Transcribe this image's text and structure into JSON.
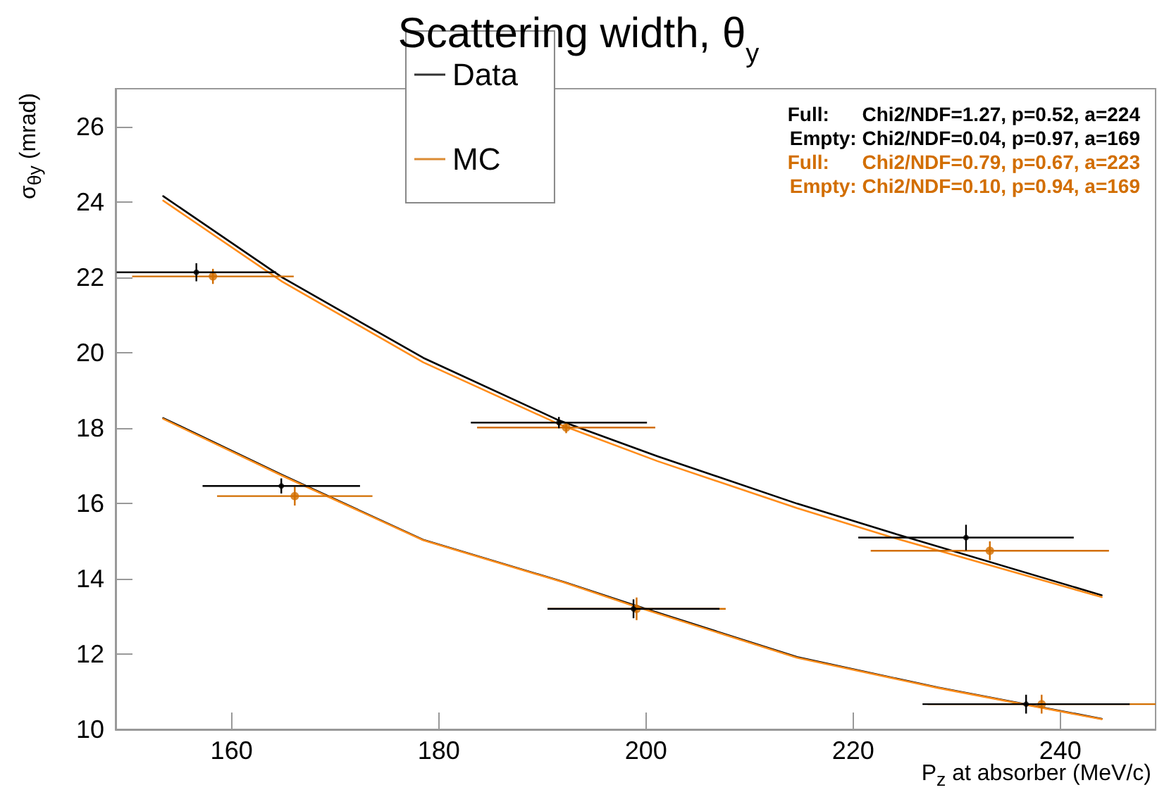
{
  "chart_data": {
    "type": "scatter",
    "title": "Scattering width, θ$_{y}$",
    "xlabel": "P$_{z}$ at absorber (MeV/c)",
    "ylabel": "σ$_{θy}$ (mrad)",
    "xlim": [
      148.8,
      249.2
    ],
    "xticks": [
      160,
      180,
      200,
      220,
      240
    ],
    "ylim": [
      10,
      27
    ],
    "yticks": [
      10,
      12,
      14,
      16,
      18,
      20,
      22,
      24,
      26
    ],
    "grid": false,
    "legend": "top",
    "marker": "circle",
    "annotations": [
      "Full:      Chi2/NDF=1.27, p=0.52, a=224",
      "Empty: Chi2/NDF=0.04, p=0.97, a=169",
      "Full:      Chi2/NDF=0.79, p=0.67, a=223",
      "Empty: Chi2/NDF=0.10, p=0.94, a=169"
    ],
    "series": [
      {
        "name": "Data",
        "color": "#000000",
        "x": [
          156.6,
          164.8,
          191.6,
          198.8,
          230.9,
          236.7
        ],
        "values": [
          22.13,
          16.46,
          18.14,
          13.2,
          15.09,
          10.67
        ],
        "errors": [
          0.24,
          0.2,
          0.15,
          0.25,
          0.34,
          0.25
        ],
        "xerrors": [
          7.7,
          7.6,
          8.5,
          8.3,
          10.4,
          10.0
        ]
      },
      {
        "name": "MC",
        "color": "#d26e00",
        "x": [
          158.2,
          166.1,
          192.3,
          199.1,
          233.2,
          238.2
        ],
        "values": [
          22.02,
          16.19,
          18.01,
          13.2,
          14.74,
          10.67
        ],
        "errors": [
          0.2,
          0.25,
          0.15,
          0.3,
          0.25,
          0.25
        ],
        "xerrors": [
          7.8,
          7.5,
          8.6,
          8.6,
          11.5,
          11.0
        ]
      },
      {
        "type": "line",
        "color": "#000000",
        "marker": "none",
        "x": [
          153.4,
          164.9,
          178.5,
          191.6,
          201.1,
          214.6,
          223.7,
          244.0
        ],
        "values": [
          24.15,
          21.99,
          19.86,
          18.2,
          17.25,
          15.99,
          15.22,
          13.56
        ]
      },
      {
        "type": "line",
        "color": "#ff8c1a",
        "marker": "none",
        "x": [
          153.4,
          164.9,
          178.5,
          191.6,
          201.1,
          214.6,
          223.7,
          244.0
        ],
        "values": [
          24.03,
          21.88,
          19.74,
          18.1,
          17.12,
          15.87,
          15.1,
          13.51
        ]
      },
      {
        "type": "line",
        "color": "#000000",
        "marker": "none",
        "x": [
          153.4,
          164.9,
          178.5,
          192.1,
          198.8,
          214.6,
          228.2,
          244.0
        ],
        "values": [
          18.26,
          16.75,
          15.03,
          13.91,
          13.3,
          11.92,
          11.11,
          10.28
        ]
      },
      {
        "type": "line",
        "color": "#ff8c1a",
        "marker": "none",
        "x": [
          153.4,
          164.9,
          178.5,
          192.1,
          198.8,
          214.6,
          228.2,
          244.0
        ],
        "values": [
          18.24,
          16.73,
          15.02,
          13.9,
          13.28,
          11.9,
          11.1,
          10.27
        ]
      }
    ]
  }
}
